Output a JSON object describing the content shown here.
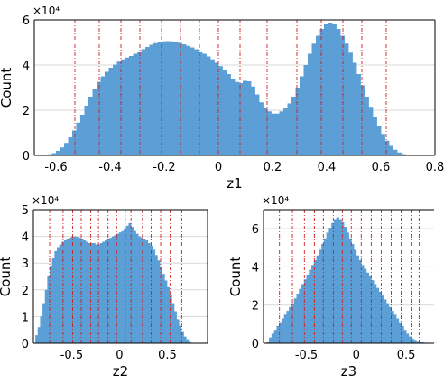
{
  "figure": {
    "bar_color": "#5b9fd6",
    "split_line_color": "#cc1f1f",
    "grid_color": "#d9d9d9"
  },
  "chart_data": [
    {
      "id": "z1",
      "type": "bar",
      "xlabel": "z1",
      "ylabel": "Count",
      "multiplier": "×10⁴",
      "xlim": [
        -0.68,
        0.8
      ],
      "ylim": [
        0,
        6
      ],
      "xticks": [
        -0.6,
        -0.4,
        -0.2,
        0,
        0.2,
        0.4,
        0.6,
        0.8
      ],
      "xtick_labels": [
        "-0.6",
        "-0.4",
        "-0.2",
        "0",
        "0.2",
        "0.4",
        "0.6",
        "0.8"
      ],
      "yticks": [
        0,
        2,
        4,
        6
      ],
      "ytick_labels": [
        "0",
        "2",
        "4",
        "6"
      ],
      "bins": {
        "start": -0.66,
        "width": 0.015
      },
      "values": [
        0.01,
        0.02,
        0.05,
        0.1,
        0.2,
        0.35,
        0.55,
        0.8,
        1.1,
        1.45,
        1.8,
        2.2,
        2.6,
        2.95,
        3.25,
        3.5,
        3.7,
        3.88,
        4.02,
        4.15,
        4.25,
        4.33,
        4.4,
        4.5,
        4.6,
        4.7,
        4.8,
        4.9,
        4.97,
        5.02,
        5.05,
        5.06,
        5.05,
        5.02,
        4.98,
        4.92,
        4.85,
        4.78,
        4.7,
        4.6,
        4.5,
        4.38,
        4.25,
        4.1,
        3.95,
        3.8,
        3.6,
        3.4,
        3.25,
        3.2,
        3.3,
        3.28,
        3.05,
        2.7,
        2.35,
        2.1,
        1.95,
        1.85,
        1.85,
        1.95,
        2.1,
        2.3,
        2.6,
        3.0,
        3.5,
        4.0,
        4.5,
        4.95,
        5.3,
        5.6,
        5.8,
        5.88,
        5.8,
        5.6,
        5.3,
        4.95,
        4.55,
        4.1,
        3.6,
        3.1,
        2.6,
        2.15,
        1.7,
        1.3,
        0.95,
        0.65,
        0.42,
        0.25,
        0.13,
        0.06,
        0.02
      ],
      "split_lines": [
        -0.53,
        -0.44,
        -0.36,
        -0.29,
        -0.21,
        -0.14,
        -0.07,
        0.0,
        0.08,
        0.18,
        0.29,
        0.38,
        0.46,
        0.53,
        0.62
      ]
    },
    {
      "id": "z2",
      "type": "bar",
      "xlabel": "z2",
      "ylabel": "Count",
      "multiplier": "×10⁴",
      "xlim": [
        -0.9,
        0.92
      ],
      "ylim": [
        0,
        5
      ],
      "xticks": [
        -0.5,
        0,
        0.5
      ],
      "xtick_labels": [
        "-0.5",
        "0",
        "0.5"
      ],
      "yticks": [
        0,
        1,
        2,
        3,
        4,
        5
      ],
      "ytick_labels": [
        "0",
        "1",
        "2",
        "3",
        "4",
        "5"
      ],
      "bins": {
        "start": -0.88,
        "width": 0.025
      },
      "values": [
        0.3,
        0.6,
        1.0,
        1.5,
        2.0,
        2.5,
        2.9,
        3.2,
        3.45,
        3.6,
        3.7,
        3.8,
        3.85,
        3.9,
        3.95,
        4.0,
        4.0,
        3.98,
        3.95,
        3.9,
        3.85,
        3.8,
        3.75,
        3.75,
        3.75,
        3.7,
        3.7,
        3.75,
        3.8,
        3.85,
        3.9,
        3.95,
        4.0,
        4.05,
        4.1,
        4.15,
        4.2,
        4.3,
        4.4,
        4.5,
        4.35,
        4.2,
        4.1,
        4.0,
        3.95,
        3.9,
        3.85,
        3.75,
        3.65,
        3.5,
        3.3,
        3.1,
        2.85,
        2.6,
        2.35,
        2.1,
        1.8,
        1.5,
        1.2,
        0.9,
        0.65,
        0.45,
        0.25,
        0.15,
        0.08
      ],
      "split_lines": [
        -0.73,
        -0.59,
        -0.49,
        -0.4,
        -0.3,
        -0.22,
        -0.12,
        -0.03,
        0.06,
        0.12,
        0.24,
        0.33,
        0.43,
        0.53,
        0.65
      ]
    },
    {
      "id": "z3",
      "type": "bar",
      "xlabel": "z3",
      "ylabel": "Count",
      "multiplier": "×10⁴",
      "xlim": [
        -0.93,
        0.78
      ],
      "ylim": [
        0,
        7
      ],
      "xticks": [
        -0.5,
        0,
        0.5
      ],
      "xtick_labels": [
        "-0.5",
        "0",
        "0.5"
      ],
      "yticks": [
        0,
        2,
        4,
        6
      ],
      "ytick_labels": [
        "0",
        "2",
        "4",
        "6"
      ],
      "bins": {
        "start": -0.9,
        "width": 0.025
      },
      "values": [
        0.1,
        0.3,
        0.5,
        0.7,
        0.9,
        1.1,
        1.3,
        1.5,
        1.7,
        1.9,
        2.1,
        2.35,
        2.6,
        2.85,
        3.1,
        3.35,
        3.6,
        3.85,
        4.1,
        4.35,
        4.6,
        4.9,
        5.2,
        5.5,
        5.8,
        6.05,
        6.3,
        6.5,
        6.6,
        6.5,
        6.35,
        6.1,
        5.8,
        5.5,
        5.2,
        4.9,
        4.6,
        4.35,
        4.1,
        3.9,
        3.7,
        3.5,
        3.3,
        3.1,
        2.9,
        2.7,
        2.5,
        2.3,
        2.1,
        1.9,
        1.7,
        1.5,
        1.3,
        1.1,
        0.9,
        0.7,
        0.5,
        0.35,
        0.25,
        0.18,
        0.12,
        0.08,
        0.05,
        0.03,
        0.02,
        0.01,
        0.01,
        0.01
      ],
      "split_lines": [
        -0.77,
        -0.64,
        -0.52,
        -0.42,
        -0.33,
        -0.23,
        -0.14,
        -0.05,
        0.05,
        0.15,
        0.25,
        0.35,
        0.45,
        0.55,
        0.63
      ]
    }
  ]
}
